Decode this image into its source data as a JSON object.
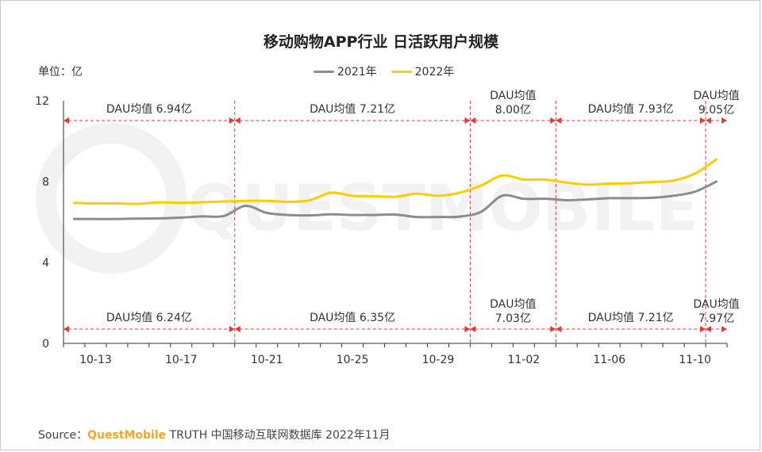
{
  "title": "移动购物APP行业 日活跃用户规模",
  "unit_label": "单位：亿",
  "source": {
    "prefix": "Source：",
    "brand": "QuestMobile",
    "suffix": "TRUTH 中国移动互联网数据库 2022年11月"
  },
  "watermark": "QUESTMOBILE",
  "colors": {
    "series_2021": "#8c8c8c",
    "series_2022": "#ffcc00",
    "divider": "#e53935",
    "axis": "#333333",
    "watermark": "#f2f2f2"
  },
  "chart_data": {
    "type": "line",
    "title": "移动购物APP行业 日活跃用户规模",
    "ylabel": "单位：亿",
    "ylim": [
      0,
      12
    ],
    "yticks": [
      0,
      4,
      8,
      12
    ],
    "grid": false,
    "legend_position": "top-center",
    "x": [
      "10-12",
      "10-13",
      "10-14",
      "10-15",
      "10-16",
      "10-17",
      "10-18",
      "10-19",
      "10-20",
      "10-21",
      "10-22",
      "10-23",
      "10-24",
      "10-25",
      "10-26",
      "10-27",
      "10-28",
      "10-29",
      "10-30",
      "10-31",
      "11-01",
      "11-02",
      "11-03",
      "11-04",
      "11-05",
      "11-06",
      "11-07",
      "11-08",
      "11-09",
      "11-10",
      "11-11"
    ],
    "xticks": [
      "10-13",
      "10-17",
      "10-21",
      "10-25",
      "10-29",
      "11-02",
      "11-06",
      "11-10"
    ],
    "series": [
      {
        "name": "2021年",
        "values": [
          6.15,
          6.15,
          6.15,
          6.17,
          6.18,
          6.22,
          6.28,
          6.3,
          6.8,
          6.45,
          6.35,
          6.33,
          6.38,
          6.35,
          6.35,
          6.37,
          6.25,
          6.25,
          6.27,
          6.5,
          7.3,
          7.15,
          7.15,
          7.08,
          7.12,
          7.18,
          7.18,
          7.2,
          7.3,
          7.5,
          8.0
        ]
      },
      {
        "name": "2022年",
        "values": [
          6.95,
          6.92,
          6.92,
          6.9,
          6.97,
          6.95,
          6.98,
          7.02,
          7.05,
          7.05,
          7.0,
          7.08,
          7.45,
          7.3,
          7.28,
          7.25,
          7.4,
          7.3,
          7.45,
          7.8,
          8.3,
          8.1,
          8.1,
          7.95,
          7.85,
          7.9,
          7.92,
          7.98,
          8.05,
          8.4,
          9.1
        ]
      }
    ],
    "period_dividers_after": [
      "10-19",
      "10-30",
      "11-03",
      "11-10"
    ],
    "annotations_2022": [
      {
        "label": "DAU均值 6.94亿",
        "from": "10-12",
        "to": "10-19"
      },
      {
        "label": "DAU均值 7.21亿",
        "from": "10-19",
        "to": "10-30"
      },
      {
        "label": "DAU均值 8.00亿",
        "from": "10-30",
        "to": "11-03"
      },
      {
        "label": "DAU均值 7.93亿",
        "from": "11-03",
        "to": "11-10"
      },
      {
        "label": "DAU均值 9.05亿",
        "from": "11-10",
        "to": "11-11"
      }
    ],
    "annotations_2021": [
      {
        "label": "DAU均值 6.24亿",
        "from": "10-12",
        "to": "10-19"
      },
      {
        "label": "DAU均值 6.35亿",
        "from": "10-19",
        "to": "10-30"
      },
      {
        "label": "DAU均值 7.03亿",
        "from": "10-30",
        "to": "11-03"
      },
      {
        "label": "DAU均值 7.21亿",
        "from": "11-03",
        "to": "11-10"
      },
      {
        "label": "DAU均值 7.97亿",
        "from": "11-10",
        "to": "11-11"
      }
    ]
  }
}
